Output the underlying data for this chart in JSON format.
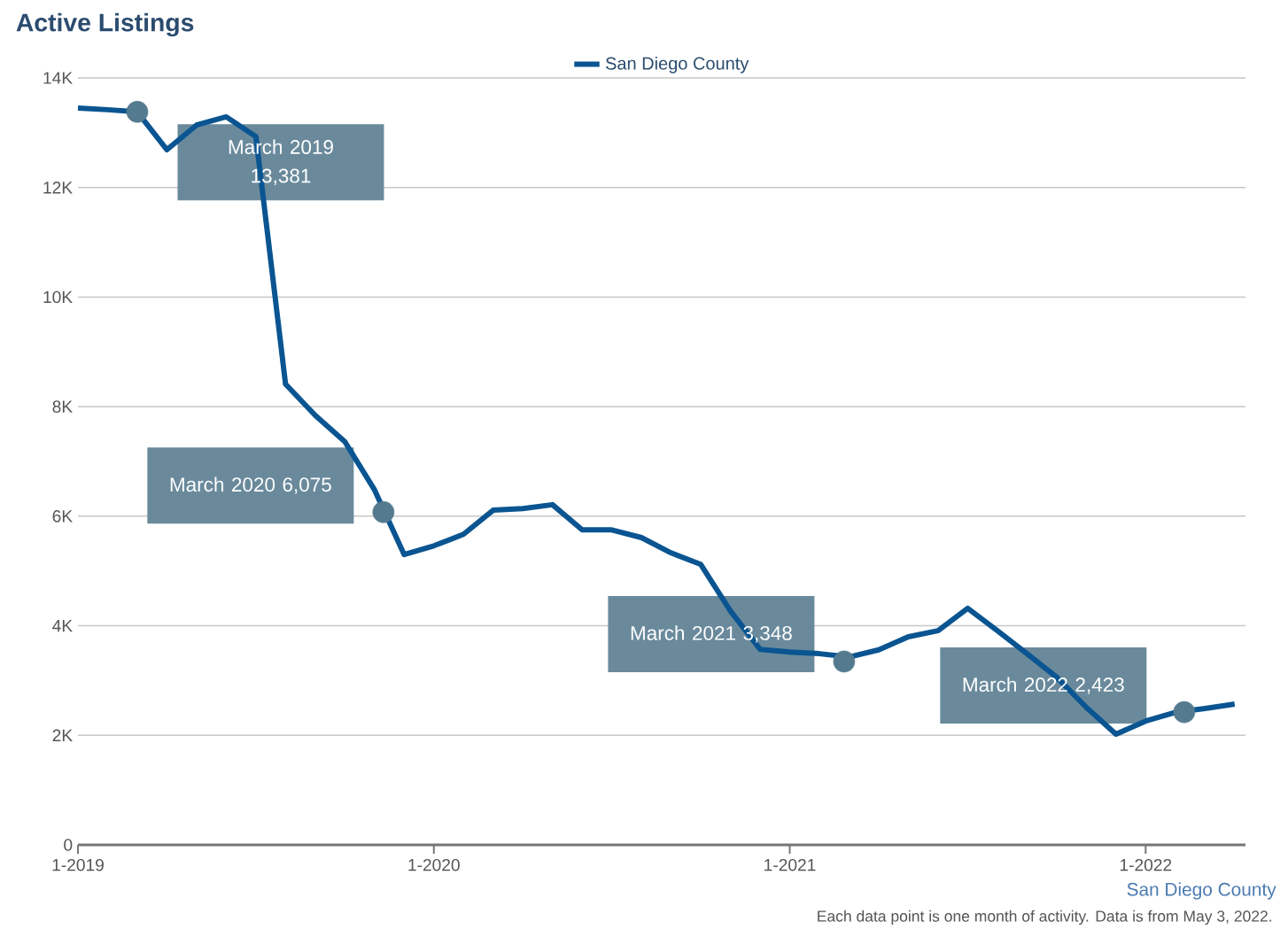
{
  "chart_data": {
    "type": "line",
    "title": "Active Listings",
    "x": [
      "2019-01",
      "2019-02",
      "2019-03",
      "2019-04",
      "2019-05",
      "2019-06",
      "2019-07",
      "2019-08",
      "2019-09",
      "2019-10",
      "2019-11",
      "2019-12",
      "2020-01",
      "2020-02",
      "2020-03",
      "2020-04",
      "2020-05",
      "2020-06",
      "2020-07",
      "2020-08",
      "2020-09",
      "2020-10",
      "2020-11",
      "2020-12",
      "2021-01",
      "2021-02",
      "2021-03",
      "2021-04",
      "2021-05",
      "2021-06",
      "2021-07",
      "2021-08",
      "2021-09",
      "2021-10",
      "2021-11",
      "2021-12",
      "2022-01",
      "2022-02",
      "2022-03",
      "2022-04"
    ],
    "series": [
      {
        "name": "San Diego County",
        "color": "#0a5591",
        "values": [
          13450,
          13420,
          13380,
          12690,
          13140,
          13290,
          12930,
          8410,
          7840,
          7360,
          6480,
          5300,
          5460,
          5670,
          6110,
          6140,
          6210,
          5750,
          5750,
          5610,
          5330,
          5120,
          4270,
          3570,
          3520,
          3490,
          3430,
          3560,
          3800,
          3910,
          4320,
          3910,
          3490,
          3060,
          2510,
          2020,
          2260,
          2420,
          2490,
          2570
        ]
      },
      {
        "type": "scatter",
        "color": "#547a8f",
        "x": [
          "2019-03",
          "2019-11-10",
          "2021-02-26",
          "2022-02-10"
        ],
        "values": [
          13381,
          6075,
          3348,
          2423
        ]
      }
    ],
    "xlim": [
      "2019-01",
      "2022-04-12"
    ],
    "xticks": [
      {
        "value": "2019-01",
        "label": "1-2019"
      },
      {
        "value": "2020-01",
        "label": "1-2020"
      },
      {
        "value": "2021-01",
        "label": "1-2021"
      },
      {
        "value": "2022-01",
        "label": "1-2022"
      }
    ],
    "ylim": [
      0,
      14000
    ],
    "yticks": [
      0,
      {
        "value": 2000,
        "label": "2K"
      },
      {
        "value": 4000,
        "label": "4K"
      },
      {
        "value": 6000,
        "label": "6K"
      },
      {
        "value": 8000,
        "label": "8K"
      },
      {
        "value": 10000,
        "label": "10K"
      },
      {
        "value": 12000,
        "label": "12K"
      },
      {
        "value": 14000,
        "label": "14K"
      }
    ],
    "grid": "y",
    "legend": "top",
    "line_style": "solid",
    "annotations": [
      "March 2019 13,381",
      "March 2020 6,075",
      "March 2021 3,348",
      "March 2022 2,423",
      "San Diego County",
      "Each data point is one month of activity. Data is from May 3, 2022."
    ]
  }
}
